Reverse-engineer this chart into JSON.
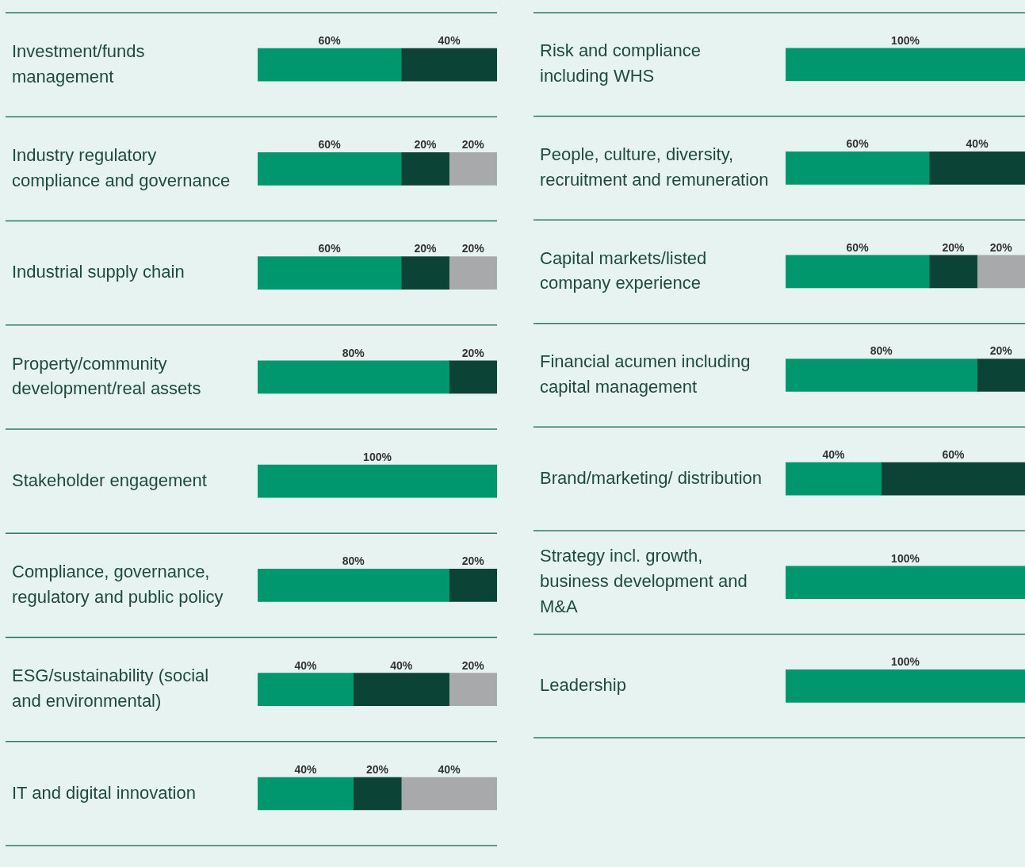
{
  "chart_data": [
    {
      "type": "bar",
      "orientation": "horizontal",
      "stacked": true,
      "grid": "y",
      "legend": false,
      "tick_labels": "y",
      "xlim": [
        0,
        100
      ],
      "categories": [
        "Investment/funds management",
        "Industry regulatory compliance and governance",
        "Industrial supply chain",
        "Property/community development/real assets",
        "Stakeholder engagement",
        "Compliance, governance, regulatory and public policy",
        "ESG/sustainability (social and environmental)",
        "IT and digital innovation"
      ],
      "series": [
        {
          "color": "#00976e",
          "values": [
            60,
            60,
            60,
            80,
            100,
            80,
            40,
            40
          ],
          "value_labels": [
            "60%",
            "60%",
            "60%",
            "80%",
            "100%",
            "80%",
            "40%",
            "40%"
          ]
        },
        {
          "color": "#0b4436",
          "values": [
            40,
            20,
            20,
            20,
            null,
            20,
            40,
            20
          ],
          "value_labels": [
            "40%",
            "20%",
            "20%",
            "20%",
            null,
            "20%",
            "40%",
            "20%"
          ]
        },
        {
          "color": "#a8a9aa",
          "values": [
            null,
            20,
            20,
            null,
            null,
            null,
            20,
            40
          ],
          "value_labels": [
            null,
            "20%",
            "20%",
            null,
            null,
            null,
            "20%",
            "40%"
          ]
        }
      ]
    },
    {
      "type": "bar",
      "orientation": "horizontal",
      "stacked": true,
      "grid": "y",
      "legend": false,
      "tick_labels": "y",
      "xlim": [
        0,
        100
      ],
      "categories": [
        "Risk and compliance including WHS",
        "People, culture, diversity, recruitment and remuneration",
        "Capital markets/listed company experience",
        "Financial acumen including capital management",
        "Brand/marketing/ distribution",
        "Strategy incl. growth, business development and M&A",
        "Leadership"
      ],
      "series": [
        {
          "color": "#00976e",
          "values": [
            100,
            60,
            60,
            80,
            40,
            100,
            100
          ],
          "value_labels": [
            "100%",
            "60%",
            "60%",
            "80%",
            "40%",
            "100%",
            "100%"
          ]
        },
        {
          "color": "#0b4436",
          "values": [
            null,
            40,
            20,
            20,
            60,
            null,
            null
          ],
          "value_labels": [
            null,
            "40%",
            "20%",
            "20%",
            "60%",
            null,
            null
          ]
        },
        {
          "color": "#a8a9aa",
          "values": [
            null,
            null,
            20,
            null,
            null,
            null,
            null
          ],
          "value_labels": [
            null,
            null,
            "20%",
            null,
            null,
            null,
            null
          ]
        }
      ]
    }
  ]
}
